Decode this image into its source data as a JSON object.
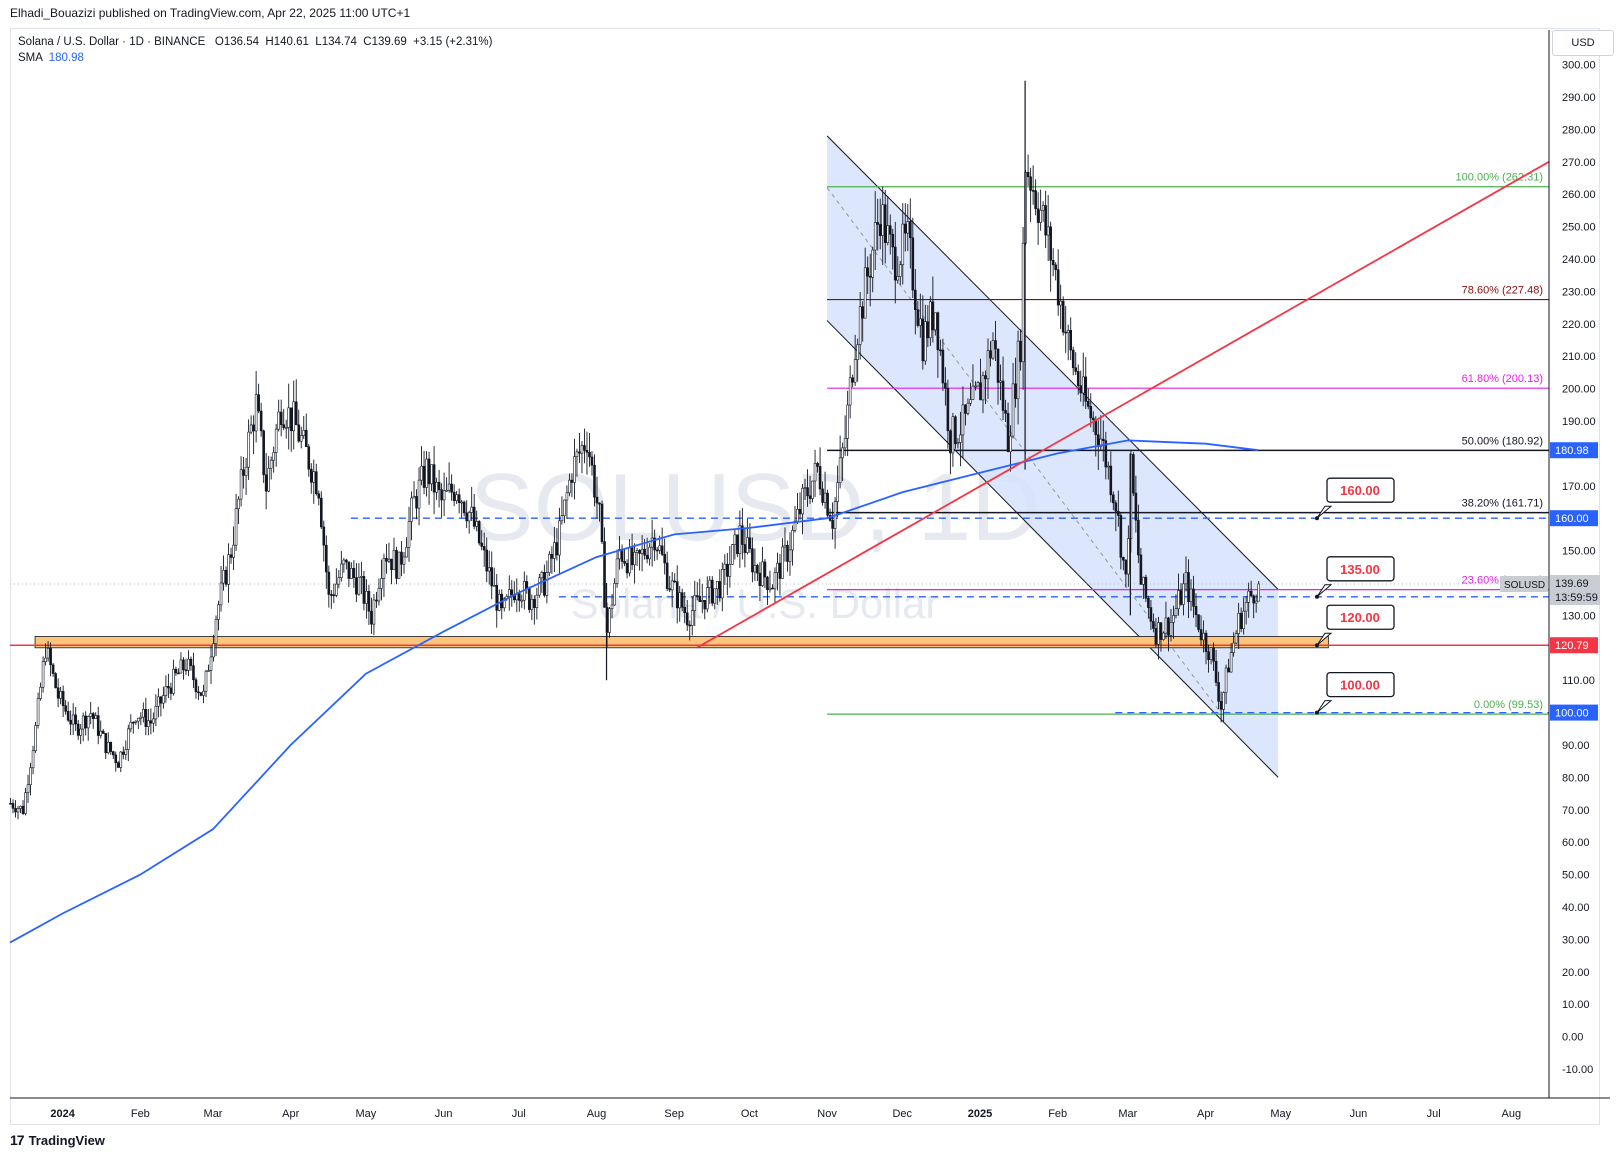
{
  "header": {
    "published_text": "Elhadi_Bouazizi published on TradingView.com, Apr 22, 2025 11:00 UTC+1"
  },
  "legend": {
    "symbol_text": "Solana / U.S. Dollar · 1D · BINANCE",
    "o_label": "O",
    "o_value": "136.54",
    "h_label": "H",
    "h_value": "140.61",
    "l_label": "L",
    "l_value": "134.74",
    "c_label": "C",
    "c_value": "139.69",
    "change": "+3.15 (+2.31%)",
    "sma_label": "SMA",
    "sma_value": "180.98"
  },
  "currency": "USD",
  "watermark": {
    "symbol": "SOLUSD, 1D",
    "name": "Solana / U.S. Dollar"
  },
  "branding": {
    "logo_text": "TradingView",
    "logo_mark": "17"
  },
  "colors": {
    "up": "#131722",
    "down": "#131722",
    "sma": "#2962ff",
    "trendline": "#f23645",
    "channel_fill": "#d6e2fb",
    "channel_line": "#131722",
    "support_zone": "#fbc67b",
    "support_line": "#f23645",
    "dashed_level": "#2962ff",
    "fib_100": "#4caf50",
    "fib_786": "#880e0e",
    "fib_618": "#e91ee9",
    "fib_500": "#131722",
    "fib_382": "#131722",
    "fib_236": "#e91ee9",
    "fib_0": "#4caf50"
  },
  "chart_data": {
    "type": "candlestick",
    "title": "Solana / U.S. Dollar · 1D · BINANCE",
    "ylabel": "USD",
    "ylim": [
      -15,
      305
    ],
    "y_ticks": [
      -10,
      0,
      10,
      20,
      30,
      40,
      50,
      60,
      70,
      80,
      90,
      100,
      110,
      120,
      130,
      140,
      150,
      160,
      170,
      180,
      190,
      200,
      210,
      220,
      230,
      240,
      250,
      260,
      270,
      280,
      290,
      300
    ],
    "x_ticks": [
      "2024",
      "Feb",
      "Mar",
      "Apr",
      "May",
      "Jun",
      "Jul",
      "Aug",
      "Sep",
      "Oct",
      "Nov",
      "Dec",
      "2025",
      "Feb",
      "Mar",
      "Apr",
      "May",
      "Jun",
      "Jul",
      "Aug"
    ],
    "x_tick_dates": [
      "2024-01-01",
      "2024-02-01",
      "2024-03-01",
      "2024-04-01",
      "2024-05-01",
      "2024-06-01",
      "2024-07-01",
      "2024-08-01",
      "2024-09-01",
      "2024-10-01",
      "2024-11-01",
      "2024-12-01",
      "2025-01-01",
      "2025-02-01",
      "2025-03-01",
      "2025-04-01",
      "2025-05-01",
      "2025-06-01",
      "2025-07-01",
      "2025-08-01"
    ],
    "xlim": [
      "2023-12-11",
      "2025-08-16"
    ],
    "ohlc_last": {
      "open": 136.54,
      "high": 140.61,
      "low": 134.74,
      "close": 139.69
    },
    "price_path": [
      [
        "2023-12-11",
        72
      ],
      [
        "2023-12-16",
        70
      ],
      [
        "2023-12-21",
        95
      ],
      [
        "2023-12-25",
        120
      ],
      [
        "2023-12-30",
        105
      ],
      [
        "2024-01-06",
        95
      ],
      [
        "2024-01-12",
        100
      ],
      [
        "2024-01-18",
        90
      ],
      [
        "2024-01-23",
        85
      ],
      [
        "2024-01-30",
        100
      ],
      [
        "2024-02-05",
        97
      ],
      [
        "2024-02-12",
        108
      ],
      [
        "2024-02-19",
        115
      ],
      [
        "2024-02-26",
        105
      ],
      [
        "2024-03-02",
        130
      ],
      [
        "2024-03-08",
        150
      ],
      [
        "2024-03-14",
        180
      ],
      [
        "2024-03-18",
        195
      ],
      [
        "2024-03-22",
        170
      ],
      [
        "2024-03-28",
        195
      ],
      [
        "2024-04-02",
        190
      ],
      [
        "2024-04-07",
        180
      ],
      [
        "2024-04-12",
        170
      ],
      [
        "2024-04-16",
        135
      ],
      [
        "2024-04-22",
        145
      ],
      [
        "2024-04-28",
        140
      ],
      [
        "2024-05-03",
        130
      ],
      [
        "2024-05-08",
        150
      ],
      [
        "2024-05-14",
        145
      ],
      [
        "2024-05-20",
        165
      ],
      [
        "2024-05-25",
        175
      ],
      [
        "2024-05-31",
        165
      ],
      [
        "2024-06-06",
        170
      ],
      [
        "2024-06-12",
        160
      ],
      [
        "2024-06-18",
        145
      ],
      [
        "2024-06-24",
        130
      ],
      [
        "2024-06-30",
        140
      ],
      [
        "2024-07-05",
        135
      ],
      [
        "2024-07-11",
        140
      ],
      [
        "2024-07-17",
        155
      ],
      [
        "2024-07-22",
        175
      ],
      [
        "2024-07-28",
        185
      ],
      [
        "2024-08-02",
        160
      ],
      [
        "2024-08-05",
        125
      ],
      [
        "2024-08-10",
        150
      ],
      [
        "2024-08-16",
        145
      ],
      [
        "2024-08-24",
        155
      ],
      [
        "2024-08-30",
        140
      ],
      [
        "2024-09-06",
        130
      ],
      [
        "2024-09-12",
        135
      ],
      [
        "2024-09-20",
        140
      ],
      [
        "2024-09-27",
        155
      ],
      [
        "2024-10-03",
        145
      ],
      [
        "2024-10-10",
        140
      ],
      [
        "2024-10-16",
        150
      ],
      [
        "2024-10-22",
        165
      ],
      [
        "2024-10-28",
        175
      ],
      [
        "2024-11-03",
        160
      ],
      [
        "2024-11-08",
        185
      ],
      [
        "2024-11-12",
        215
      ],
      [
        "2024-11-17",
        235
      ],
      [
        "2024-11-22",
        255
      ],
      [
        "2024-11-27",
        240
      ],
      [
        "2024-12-03",
        245
      ],
      [
        "2024-12-09",
        215
      ],
      [
        "2024-12-14",
        225
      ],
      [
        "2024-12-20",
        185
      ],
      [
        "2024-12-26",
        190
      ],
      [
        "2025-01-01",
        200
      ],
      [
        "2025-01-06",
        215
      ],
      [
        "2025-01-12",
        185
      ],
      [
        "2025-01-17",
        215
      ],
      [
        "2025-01-19",
        270
      ],
      [
        "2025-01-25",
        255
      ],
      [
        "2025-01-31",
        235
      ],
      [
        "2025-02-06",
        210
      ],
      [
        "2025-02-12",
        195
      ],
      [
        "2025-02-18",
        185
      ],
      [
        "2025-02-24",
        165
      ],
      [
        "2025-02-28",
        140
      ],
      [
        "2025-03-02",
        175
      ],
      [
        "2025-03-06",
        140
      ],
      [
        "2025-03-12",
        125
      ],
      [
        "2025-03-18",
        128
      ],
      [
        "2025-03-24",
        140
      ],
      [
        "2025-03-30",
        125
      ],
      [
        "2025-04-03",
        118
      ],
      [
        "2025-04-07",
        102
      ],
      [
        "2025-04-10",
        115
      ],
      [
        "2025-04-14",
        128
      ],
      [
        "2025-04-18",
        135
      ],
      [
        "2025-04-22",
        139.69
      ]
    ],
    "series": [
      {
        "name": "SMA",
        "last_value": 180.98,
        "points": [
          [
            "2023-12-11",
            29
          ],
          [
            "2024-01-01",
            38
          ],
          [
            "2024-02-01",
            50
          ],
          [
            "2024-03-01",
            64
          ],
          [
            "2024-04-01",
            90
          ],
          [
            "2024-05-01",
            112
          ],
          [
            "2024-06-01",
            125
          ],
          [
            "2024-07-01",
            137
          ],
          [
            "2024-08-01",
            148
          ],
          [
            "2024-09-01",
            155
          ],
          [
            "2024-10-01",
            157
          ],
          [
            "2024-11-01",
            160
          ],
          [
            "2024-12-01",
            168
          ],
          [
            "2025-01-01",
            174
          ],
          [
            "2025-02-01",
            180
          ],
          [
            "2025-03-01",
            184
          ],
          [
            "2025-04-01",
            183
          ],
          [
            "2025-04-22",
            180.98
          ]
        ]
      }
    ],
    "fib_levels": [
      {
        "ratio": "100.00%",
        "price": 262.31,
        "label": "100.00% (262.31)"
      },
      {
        "ratio": "78.60%",
        "price": 227.48,
        "label": "78.60% (227.48)"
      },
      {
        "ratio": "61.80%",
        "price": 200.13,
        "label": "61.80% (200.13)"
      },
      {
        "ratio": "50.00%",
        "price": 180.92,
        "label": "50.00% (180.92)"
      },
      {
        "ratio": "38.20%",
        "price": 161.71,
        "label": "38.20% (161.71)"
      },
      {
        "ratio": "23.60%",
        "price": 137.95,
        "label": "23.60% (137.95)"
      },
      {
        "ratio": "0.00%",
        "price": 99.53,
        "label": "0.00% (99.53)"
      }
    ],
    "fib_range": [
      "2024-11-01",
      "2025-08-16"
    ],
    "channel": {
      "upper": [
        [
          "2024-11-01",
          278
        ],
        [
          "2025-04-22",
          138
        ]
      ],
      "lower": [
        [
          "2024-11-01",
          221
        ],
        [
          "2025-04-22",
          80
        ]
      ]
    },
    "trendline": [
      [
        "2024-09-10",
        120
      ],
      [
        "2025-08-16",
        270
      ]
    ],
    "support_zone": {
      "from": 120,
      "to": 123.5,
      "start": "2023-12-21",
      "end": "2025-05-20"
    },
    "support_line": 120.79,
    "dashed_levels": [
      {
        "price": 160,
        "start": "2024-04-25"
      },
      {
        "price": 135.74,
        "start": "2024-07-17"
      },
      {
        "price": 100,
        "start": "2025-02-24"
      }
    ],
    "callouts": [
      {
        "text": "160.00",
        "price": 160
      },
      {
        "text": "135.00",
        "price": 135.74
      },
      {
        "text": "120.00",
        "price": 120.79
      },
      {
        "text": "100.00",
        "price": 100
      }
    ],
    "axis_badges": [
      {
        "text": "180.98",
        "price": 180.98,
        "color": "#2962ff"
      },
      {
        "text": "160.00",
        "price": 160,
        "color": "#2962ff"
      },
      {
        "text": "135.74",
        "price": 135.74,
        "color": "#2962ff"
      },
      {
        "text": "120.79",
        "price": 120.79,
        "color": "#f23645"
      },
      {
        "text": "100.00",
        "price": 100,
        "color": "#2962ff"
      }
    ],
    "price_badge": {
      "symbol": "SOLUSD",
      "price": "139.69",
      "countdown": "13:59:59",
      "value": 139.69
    }
  }
}
